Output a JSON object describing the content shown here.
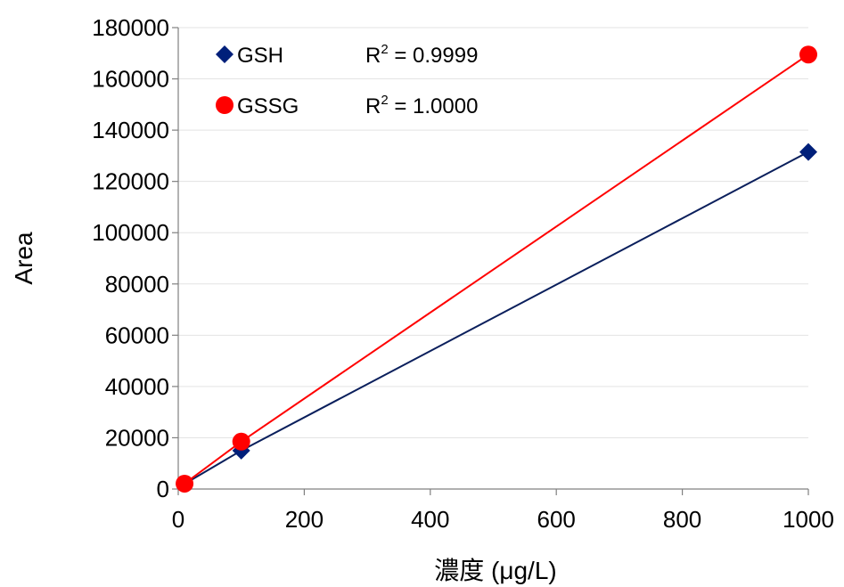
{
  "chart_data": {
    "type": "scatter",
    "xlabel": "濃度 (μg/L)",
    "ylabel": "Area",
    "xlim": [
      0,
      1000
    ],
    "ylim": [
      0,
      180000
    ],
    "x_ticks": [
      "0",
      "200",
      "400",
      "600",
      "800",
      "1000"
    ],
    "y_ticks": [
      "0",
      "20000",
      "40000",
      "60000",
      "80000",
      "100000",
      "120000",
      "140000",
      "160000",
      "180000"
    ],
    "grid": "horizontal",
    "legend_position": "top-left",
    "series": [
      {
        "name": "GSH",
        "marker": "diamond",
        "color": "#001f7a",
        "line_color": "#0a1f5c",
        "r2_label": "R",
        "r2_sup": "2",
        "r2_value": " = 0.9999",
        "x": [
          10,
          100,
          1000
        ],
        "y": [
          2000,
          15000,
          131500
        ]
      },
      {
        "name": "GSSG",
        "marker": "circle",
        "color": "#ff0000",
        "line_color": "#ff0000",
        "r2_label": "R",
        "r2_sup": "2",
        "r2_value": " = 1.0000",
        "x": [
          10,
          100,
          1000
        ],
        "y": [
          2100,
          18500,
          169500
        ]
      }
    ]
  }
}
